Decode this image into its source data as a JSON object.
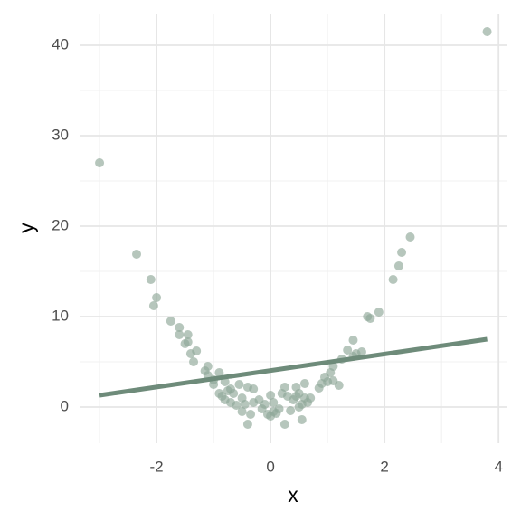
{
  "chart_data": {
    "type": "scatter",
    "xlabel": "x",
    "ylabel": "y",
    "xlim": [
      -3.35,
      4.14
    ],
    "ylim": [
      -4,
      43.5
    ],
    "xticks": [
      -2,
      0,
      2,
      4
    ],
    "yticks": [
      0,
      10,
      20,
      30,
      40
    ],
    "xminorticks": [
      -3,
      -1,
      1,
      3
    ],
    "yminorticks": [
      5,
      15,
      25,
      35
    ],
    "grid": true,
    "color": "#8fa898",
    "series": [
      {
        "x": [
          -3,
          -2.35,
          -2.1,
          -2.05,
          -2,
          -1.75,
          -1.6,
          -1.6,
          -1.5,
          -1.45,
          -1.45,
          -1.4,
          -1.35,
          -1.3,
          -1.15,
          -1.1,
          -1.1,
          -1.0,
          -1.0,
          -0.9,
          -0.9,
          -0.85,
          -0.8,
          -0.8,
          -0.75,
          -0.7,
          -0.7,
          -0.65,
          -0.6,
          -0.55,
          -0.5,
          -0.5,
          -0.45,
          -0.4,
          -0.4,
          -0.35,
          -0.3,
          -0.3,
          -0.2,
          -0.15,
          -0.1,
          -0.05,
          0,
          0,
          0.05,
          0.05,
          0.1,
          0.15,
          0.2,
          0.25,
          0.25,
          0.3,
          0.35,
          0.4,
          0.45,
          0.45,
          0.5,
          0.5,
          0.55,
          0.55,
          0.6,
          0.6,
          0.65,
          0.7,
          0.85,
          0.9,
          0.95,
          1.0,
          1.05,
          1.1,
          1.1,
          1.2,
          1.25,
          1.35,
          1.45,
          1.45,
          1.5,
          1.6,
          1.7,
          1.75,
          1.9,
          2.15,
          2.25,
          2.3,
          2.45,
          3.8
        ],
        "values": [
          27,
          16.9,
          14.1,
          11.2,
          12.1,
          9.5,
          8.8,
          8.0,
          7.0,
          7.2,
          8.0,
          5.9,
          5.0,
          6.2,
          4.0,
          4.5,
          3.5,
          3.0,
          2.5,
          3.8,
          1.5,
          1.2,
          2.8,
          0.8,
          1.8,
          2.0,
          0.5,
          1.5,
          0.2,
          2.5,
          1.0,
          -0.5,
          0.3,
          2.2,
          -1.9,
          -0.8,
          0.5,
          2.0,
          0.8,
          -0.2,
          0.3,
          -0.8,
          1.3,
          -1.0,
          0.5,
          -0.5,
          -0.7,
          -0.2,
          1.5,
          2.2,
          -1.9,
          1.2,
          -0.4,
          0.8,
          1.2,
          2.2,
          0.0,
          1.5,
          -1.4,
          0.3,
          2.6,
          1.0,
          0.5,
          1.0,
          2.1,
          2.6,
          3.3,
          2.8,
          3.8,
          4.5,
          2.9,
          2.4,
          5.3,
          6.3,
          5.6,
          7.4,
          5.9,
          6.1,
          10.0,
          9.8,
          10.5,
          14.1,
          15.6,
          17.1,
          18.8,
          41.5
        ]
      }
    ],
    "trend": {
      "x": [
        -3,
        3.8
      ],
      "y": [
        1.3,
        7.5
      ],
      "color": "#6e8b7a"
    }
  }
}
